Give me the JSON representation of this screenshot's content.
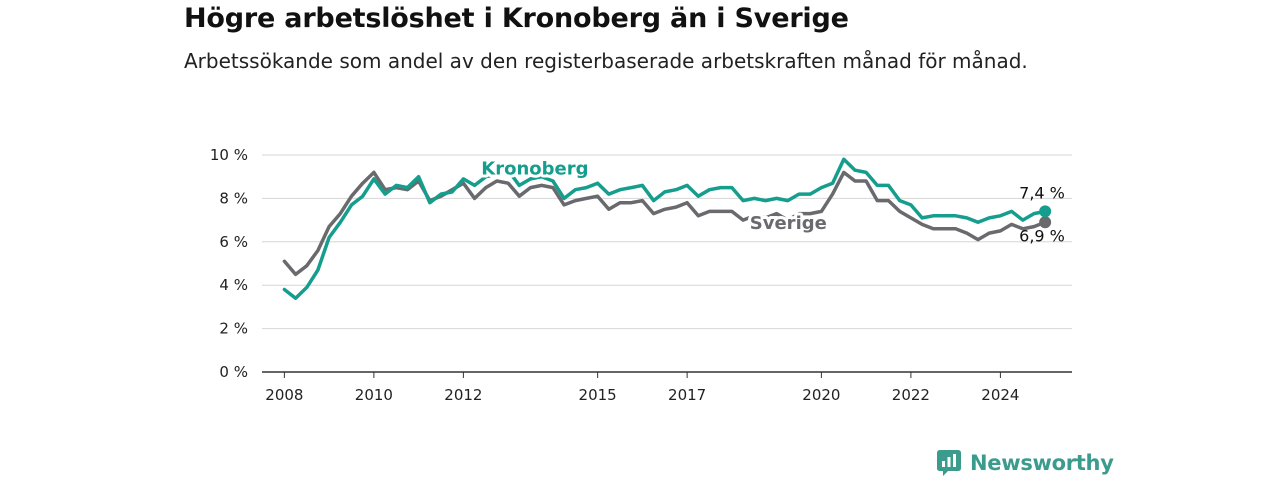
{
  "title": "Högre arbetslöshet i Kronoberg än i Sverige",
  "subtitle": "Arbetssökande som andel av den registerbaserade arbetskraften månad för månad.",
  "brand": {
    "name": "Newsworthy",
    "icon": "newsworthy-logo-icon",
    "color": "#3b9b8c"
  },
  "chart_data": {
    "type": "line",
    "title": "Högre arbetslöshet i Kronoberg än i Sverige",
    "subtitle": "Arbetssökande som andel av den registerbaserade arbetskraften månad för månad.",
    "x_unit": "year",
    "xlim": [
      2007.5,
      2025.6
    ],
    "ylim": [
      0,
      10
    ],
    "y_ticks": [
      0,
      2,
      4,
      6,
      8,
      10
    ],
    "y_tick_labels": [
      "0 %",
      "2 %",
      "4 %",
      "6 %",
      "8 %",
      "10 %"
    ],
    "x_ticks": [
      2008,
      2010,
      2012,
      2015,
      2017,
      2020,
      2022,
      2024
    ],
    "grid": true,
    "legend": "direct labels on lines",
    "series": [
      {
        "name": "Sverige",
        "color": "#6a6a6e",
        "end_label": "6,9 %",
        "x": [
          2008.0,
          2008.25,
          2008.5,
          2008.75,
          2009.0,
          2009.25,
          2009.5,
          2009.75,
          2010.0,
          2010.25,
          2010.5,
          2010.75,
          2011.0,
          2011.25,
          2011.5,
          2011.75,
          2012.0,
          2012.25,
          2012.5,
          2012.75,
          2013.0,
          2013.25,
          2013.5,
          2013.75,
          2014.0,
          2014.25,
          2014.5,
          2014.75,
          2015.0,
          2015.25,
          2015.5,
          2015.75,
          2016.0,
          2016.25,
          2016.5,
          2016.75,
          2017.0,
          2017.25,
          2017.5,
          2017.75,
          2018.0,
          2018.25,
          2018.5,
          2018.75,
          2019.0,
          2019.25,
          2019.5,
          2019.75,
          2020.0,
          2020.25,
          2020.5,
          2020.75,
          2021.0,
          2021.25,
          2021.5,
          2021.75,
          2022.0,
          2022.25,
          2022.5,
          2022.75,
          2023.0,
          2023.25,
          2023.5,
          2023.75,
          2024.0,
          2024.25,
          2024.5,
          2024.75,
          2025.0
        ],
        "y": [
          5.1,
          4.5,
          4.9,
          5.6,
          6.7,
          7.3,
          8.1,
          8.7,
          9.2,
          8.4,
          8.5,
          8.4,
          8.8,
          7.9,
          8.1,
          8.4,
          8.7,
          8.0,
          8.5,
          8.8,
          8.7,
          8.1,
          8.5,
          8.6,
          8.5,
          7.7,
          7.9,
          8.0,
          8.1,
          7.5,
          7.8,
          7.8,
          7.9,
          7.3,
          7.5,
          7.6,
          7.8,
          7.2,
          7.4,
          7.4,
          7.4,
          7.0,
          7.2,
          7.1,
          7.3,
          7.0,
          7.3,
          7.3,
          7.4,
          8.2,
          9.2,
          8.8,
          8.8,
          7.9,
          7.9,
          7.4,
          7.1,
          6.8,
          6.6,
          6.6,
          6.6,
          6.4,
          6.1,
          6.4,
          6.5,
          6.8,
          6.6,
          6.7,
          6.9
        ]
      },
      {
        "name": "Kronoberg",
        "color": "#159d8d",
        "end_label": "7,4 %",
        "x": [
          2008.0,
          2008.25,
          2008.5,
          2008.75,
          2009.0,
          2009.25,
          2009.5,
          2009.75,
          2010.0,
          2010.25,
          2010.5,
          2010.75,
          2011.0,
          2011.25,
          2011.5,
          2011.75,
          2012.0,
          2012.25,
          2012.5,
          2012.75,
          2013.0,
          2013.25,
          2013.5,
          2013.75,
          2014.0,
          2014.25,
          2014.5,
          2014.75,
          2015.0,
          2015.25,
          2015.5,
          2015.75,
          2016.0,
          2016.25,
          2016.5,
          2016.75,
          2017.0,
          2017.25,
          2017.5,
          2017.75,
          2018.0,
          2018.25,
          2018.5,
          2018.75,
          2019.0,
          2019.25,
          2019.5,
          2019.75,
          2020.0,
          2020.25,
          2020.5,
          2020.75,
          2021.0,
          2021.25,
          2021.5,
          2021.75,
          2022.0,
          2022.25,
          2022.5,
          2022.75,
          2023.0,
          2023.25,
          2023.5,
          2023.75,
          2024.0,
          2024.25,
          2024.5,
          2024.75,
          2025.0
        ],
        "y": [
          3.8,
          3.4,
          3.9,
          4.7,
          6.2,
          6.9,
          7.7,
          8.1,
          8.9,
          8.2,
          8.6,
          8.5,
          9.0,
          7.8,
          8.2,
          8.3,
          8.9,
          8.6,
          9.0,
          9.1,
          9.3,
          8.6,
          8.9,
          9.0,
          8.8,
          8.0,
          8.4,
          8.5,
          8.7,
          8.2,
          8.4,
          8.5,
          8.6,
          7.9,
          8.3,
          8.4,
          8.6,
          8.1,
          8.4,
          8.5,
          8.5,
          7.9,
          8.0,
          7.9,
          8.0,
          7.9,
          8.2,
          8.2,
          8.5,
          8.7,
          9.8,
          9.3,
          9.2,
          8.6,
          8.6,
          7.9,
          7.7,
          7.1,
          7.2,
          7.2,
          7.2,
          7.1,
          6.9,
          7.1,
          7.2,
          7.4,
          7.0,
          7.3,
          7.4
        ]
      }
    ]
  }
}
